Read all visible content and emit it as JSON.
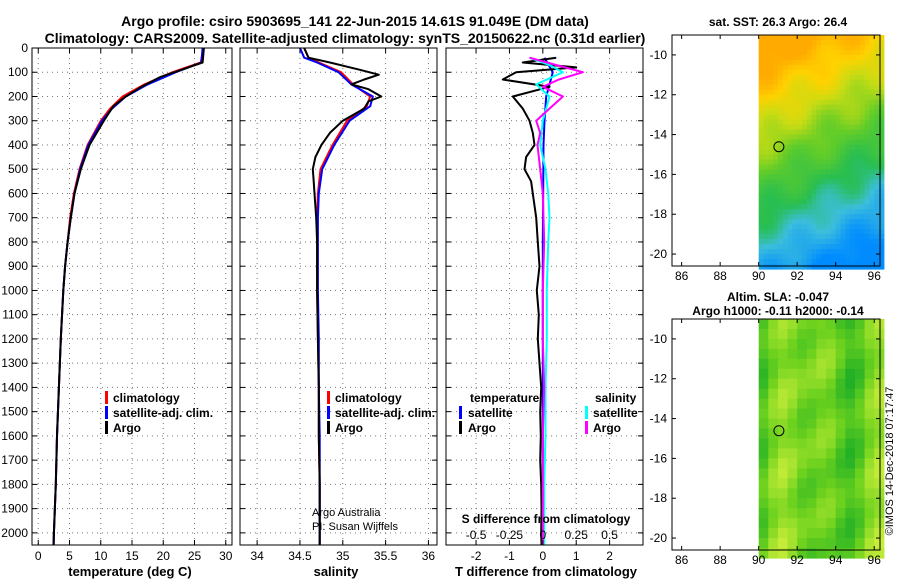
{
  "header": {
    "line1": "Argo profile: csiro 5903695_141 22-Jun-2015 14.61S 91.049E (DM data)",
    "line2": "Climatology: CARS2009. Satellite-adjusted climatology: synTS_20150622.nc (0.31d earlier)"
  },
  "credits": {
    "program": "Argo Australia",
    "pi": "PI: Susan Wijffels",
    "imos": "©IMOS 14-Dec-2018 07:17:47"
  },
  "colors": {
    "climatology": "#ff0000",
    "satellite_adj": "#0000ff",
    "argo": "#000000",
    "satellite_salinity": "#00ffff",
    "argo_salinity": "#ff00ff"
  },
  "chart_data": [
    {
      "id": "temperature",
      "type": "line",
      "xlabel": "temperature (deg C)",
      "ylabel": "",
      "xlim": [
        -1,
        31
      ],
      "ylim": [
        2050,
        0
      ],
      "xticks": [
        0,
        5,
        10,
        15,
        20,
        25,
        30
      ],
      "yticks": [
        0,
        100,
        200,
        300,
        400,
        500,
        600,
        700,
        800,
        900,
        1000,
        1100,
        1200,
        1300,
        1400,
        1500,
        1600,
        1700,
        1800,
        1900,
        2000
      ],
      "grid": true,
      "legend": "lower-right",
      "series": [
        {
          "name": "climatology",
          "color": "#ff0000",
          "y": [
            0,
            60,
            100,
            150,
            200,
            250,
            300,
            400,
            500,
            600,
            700,
            800,
            900,
            1000,
            1200,
            1400,
            1600,
            1800,
            2000,
            2050
          ],
          "x": [
            26.4,
            26.0,
            21.5,
            17.0,
            13.5,
            11.5,
            10.0,
            7.9,
            6.6,
            5.7,
            5.1,
            4.7,
            4.3,
            4.0,
            3.6,
            3.3,
            3.0,
            2.8,
            2.5,
            2.45
          ]
        },
        {
          "name": "satellite-adj. clim.",
          "color": "#0000ff",
          "y": [
            0,
            60,
            100,
            150,
            200,
            250,
            300,
            400,
            500,
            600,
            700,
            800,
            900,
            1000,
            1200,
            1400,
            1600,
            1800,
            2000,
            2050
          ],
          "x": [
            26.3,
            26.1,
            22.0,
            17.5,
            14.0,
            11.8,
            10.2,
            8.0,
            6.7,
            5.8,
            5.2,
            4.7,
            4.3,
            4.0,
            3.6,
            3.3,
            3.0,
            2.8,
            2.5,
            2.45
          ]
        },
        {
          "name": "Argo",
          "color": "#000000",
          "y": [
            0,
            60,
            80,
            120,
            160,
            200,
            240,
            300,
            400,
            500,
            600,
            700,
            800,
            900,
            1000,
            1200,
            1400,
            1600,
            1800,
            2000,
            2050
          ],
          "x": [
            26.5,
            26.3,
            24.0,
            19.5,
            16.5,
            14.0,
            12.0,
            10.5,
            8.2,
            6.8,
            5.8,
            5.2,
            4.7,
            4.3,
            4.0,
            3.6,
            3.3,
            3.0,
            2.8,
            2.5,
            2.45
          ]
        }
      ]
    },
    {
      "id": "salinity",
      "type": "line",
      "xlabel": "salinity",
      "ylabel": "",
      "xlim": [
        33.8,
        36.1
      ],
      "ylim": [
        2050,
        0
      ],
      "xticks": [
        34,
        34.5,
        35,
        35.5,
        36
      ],
      "grid": true,
      "legend": "lower-right",
      "series": [
        {
          "name": "climatology",
          "color": "#ff0000",
          "y": [
            0,
            40,
            60,
            100,
            150,
            200,
            240,
            300,
            400,
            500,
            600,
            700,
            800,
            1000,
            1200,
            1400,
            1600,
            1800,
            2000,
            2050
          ],
          "x": [
            34.55,
            34.6,
            34.72,
            34.98,
            35.12,
            35.32,
            35.28,
            35.05,
            34.88,
            34.74,
            34.71,
            34.7,
            34.7,
            34.7,
            34.71,
            34.72,
            34.72,
            34.73,
            34.73,
            34.73
          ]
        },
        {
          "name": "satellite-adj. clim.",
          "color": "#0000ff",
          "y": [
            0,
            40,
            60,
            100,
            150,
            200,
            240,
            300,
            400,
            500,
            600,
            700,
            800,
            1000,
            1200,
            1400,
            1600,
            1800,
            2000,
            2050
          ],
          "x": [
            34.5,
            34.55,
            34.7,
            34.95,
            35.1,
            35.35,
            35.32,
            35.08,
            34.9,
            34.76,
            34.72,
            34.71,
            34.71,
            34.71,
            34.72,
            34.72,
            34.73,
            34.73,
            34.73,
            34.73
          ]
        },
        {
          "name": "Argo",
          "color": "#000000",
          "y": [
            0,
            40,
            60,
            90,
            110,
            130,
            150,
            170,
            200,
            220,
            250,
            300,
            350,
            400,
            450,
            500,
            550,
            600,
            700,
            800,
            1000,
            1200,
            1400,
            1600,
            1800,
            2000,
            2050
          ],
          "x": [
            34.55,
            34.6,
            34.85,
            35.2,
            35.42,
            35.25,
            35.1,
            35.3,
            35.45,
            35.3,
            35.25,
            35.0,
            34.85,
            34.75,
            34.68,
            34.65,
            34.66,
            34.67,
            34.69,
            34.7,
            34.7,
            34.71,
            34.72,
            34.72,
            34.73,
            34.73,
            34.73
          ]
        }
      ]
    },
    {
      "id": "difference",
      "type": "line",
      "xlabel": "T difference from climatology",
      "xlabel2": "S difference from climatology",
      "ylabel": "",
      "xlim": [
        -2.9,
        3.0
      ],
      "ylim": [
        2050,
        0
      ],
      "xticks": [
        -2,
        -1,
        0,
        1,
        2
      ],
      "xticks2": [
        -0.5,
        -0.25,
        0,
        0.25,
        0.5
      ],
      "xticklabels2": [
        "-0.5",
        "-0.25",
        "0",
        "0.25",
        "0.5"
      ],
      "grid": true,
      "legend_left_title": "temperature",
      "legend_right_title": "salinity",
      "series": [
        {
          "name": "satellite",
          "group": "temperature",
          "color": "#0000ff",
          "y": [
            40,
            100,
            200,
            300,
            400,
            600,
            800,
            1200,
            1600,
            2000
          ],
          "x": [
            0.05,
            0.3,
            0.1,
            0.05,
            0.02,
            0.01,
            0.0,
            0.0,
            0.0,
            0.0
          ]
        },
        {
          "name": "Argo",
          "group": "temperature",
          "color": "#000000",
          "y": [
            40,
            60,
            80,
            100,
            130,
            160,
            200,
            250,
            300,
            350,
            400,
            450,
            500,
            550,
            600,
            700,
            800,
            900,
            1000,
            1100,
            1200,
            1300,
            1400,
            1500,
            1600,
            1700,
            1800,
            1900,
            2000,
            2050
          ],
          "x": [
            0.4,
            -0.6,
            1.0,
            -0.8,
            -1.2,
            0.2,
            -0.9,
            -0.6,
            -0.4,
            -0.3,
            -0.25,
            -0.5,
            -0.55,
            -0.35,
            -0.3,
            -0.2,
            -0.15,
            -0.1,
            -0.18,
            -0.12,
            -0.15,
            -0.1,
            -0.05,
            -0.08,
            -0.06,
            -0.08,
            -0.05,
            -0.04,
            -0.05,
            -0.04
          ]
        },
        {
          "name": "satellite",
          "group": "salinity",
          "color": "#00ffff",
          "y": [
            40,
            70,
            100,
            150,
            200,
            300,
            400,
            500,
            600,
            700,
            800,
            1000,
            1200,
            1400,
            1600,
            1800,
            2000,
            2050
          ],
          "x": [
            -0.1,
            0.05,
            0.15,
            -0.05,
            0.05,
            0.0,
            -0.02,
            0.02,
            0.04,
            0.05,
            0.04,
            0.03,
            0.03,
            0.02,
            0.02,
            0.01,
            0.01,
            0.01
          ]
        },
        {
          "name": "Argo",
          "group": "salinity",
          "color": "#ff00ff",
          "y": [
            40,
            70,
            100,
            130,
            160,
            200,
            250,
            300,
            350,
            400,
            500,
            600,
            800,
            1000,
            1200,
            1400,
            1600,
            1800,
            2000,
            2050
          ],
          "x": [
            -0.1,
            0.1,
            0.3,
            0.12,
            0.0,
            0.15,
            0.05,
            -0.05,
            -0.02,
            -0.04,
            -0.02,
            0.0,
            0.01,
            0.0,
            0.0,
            0.01,
            0.0,
            0.0,
            0.0,
            0.0
          ]
        }
      ]
    },
    {
      "id": "sst_map",
      "type": "heatmap",
      "title": "sat. SST: 26.3 Argo: 26.4",
      "xlim": [
        85.5,
        96.3
      ],
      "ylim": [
        -20.6,
        -9
      ],
      "xticks": [
        86,
        88,
        90,
        92,
        94,
        96
      ],
      "yticks": [
        -10,
        -12,
        -14,
        -16,
        -18,
        -20
      ],
      "float_marker": {
        "lon": 91.05,
        "lat": -14.61
      }
    },
    {
      "id": "sla_map",
      "type": "heatmap",
      "title": "Altim. SLA: -0.047",
      "subtitle": "Argo h1000: -0.11 h2000: -0.14",
      "xlim": [
        85.5,
        96.3
      ],
      "ylim": [
        -20.6,
        -9
      ],
      "xticks": [
        86,
        88,
        90,
        92,
        94,
        96
      ],
      "yticks": [
        -10,
        -12,
        -14,
        -16,
        -18,
        -20
      ],
      "float_marker": {
        "lon": 91.05,
        "lat": -14.61
      }
    }
  ]
}
